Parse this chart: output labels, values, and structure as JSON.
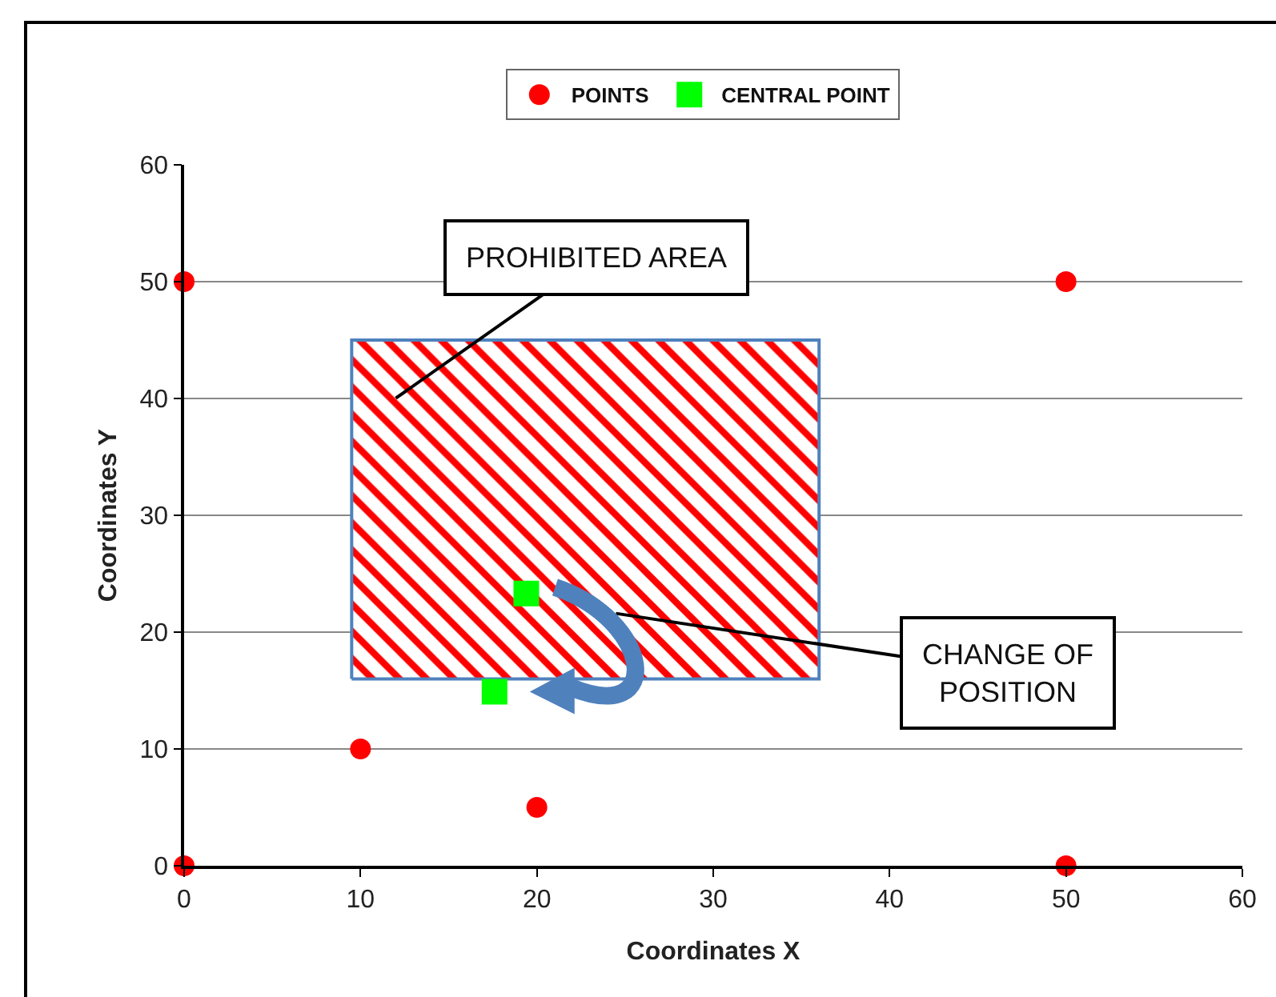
{
  "chart_data": {
    "type": "scatter",
    "xlabel": "Coordinates X",
    "ylabel": "Coordinates Y",
    "xlim": [
      0,
      60
    ],
    "ylim": [
      0,
      60
    ],
    "xticks": [
      0,
      10,
      20,
      30,
      40,
      50,
      60
    ],
    "yticks": [
      0,
      10,
      20,
      30,
      40,
      50,
      60
    ],
    "grid": "y",
    "legend": "top",
    "series": [
      {
        "type": "area",
        "x": [
          9.5,
          9.5,
          36,
          36,
          9.5
        ],
        "values": [
          16,
          45,
          45,
          16,
          16
        ],
        "color": "#ff0000"
      },
      {
        "name": "POINTS",
        "color": "#ff0000",
        "marker": "circle",
        "x": [
          0,
          0,
          10,
          20,
          50,
          50
        ],
        "values": [
          0,
          50,
          10,
          5,
          50,
          0
        ]
      },
      {
        "name": "CENTRAL POINT",
        "color": "#00ff00",
        "marker": "square",
        "x": [
          19.4,
          17.6
        ],
        "values": [
          23.3,
          14.9
        ]
      }
    ],
    "annotations": [
      "PROHIBITED AREA",
      "CHANGE OF POSITION"
    ]
  }
}
